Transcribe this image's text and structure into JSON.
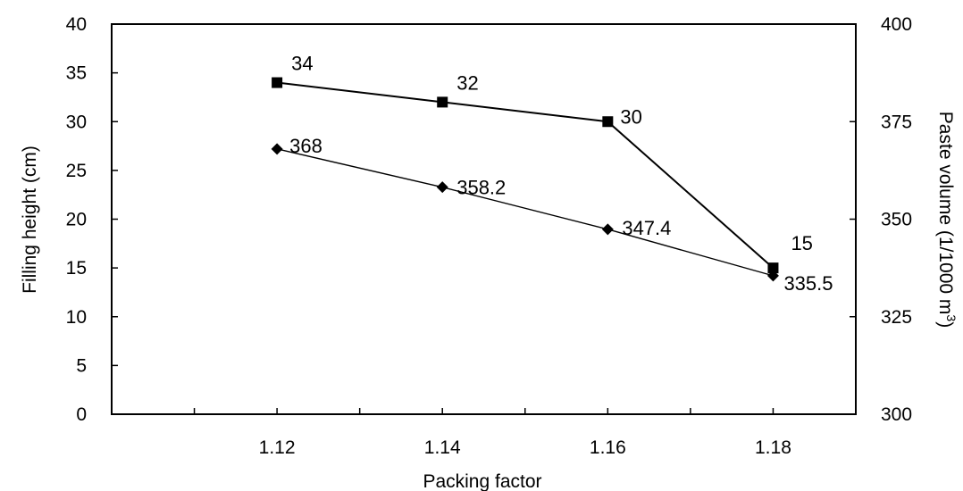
{
  "chart_data": {
    "type": "line",
    "xlabel": "Packing factor",
    "ylabel_left": "Filling height (cm)",
    "ylabel_right_main": "Paste volume (1/1000 m",
    "ylabel_right_sup": "3",
    "ylabel_right_close": ")",
    "x": [
      1.12,
      1.14,
      1.16,
      1.18
    ],
    "x_tick_labels": [
      "1.12",
      "1.14",
      "1.16",
      "1.18"
    ],
    "xlim": [
      1.1,
      1.19
    ],
    "y_left_lim": [
      0,
      40
    ],
    "y_left_ticks": [
      "0",
      "5",
      "10",
      "15",
      "20",
      "25",
      "30",
      "35",
      "40"
    ],
    "y_right_lim": [
      300,
      400
    ],
    "y_right_ticks": [
      "300",
      "325",
      "350",
      "375",
      "400"
    ],
    "series": [
      {
        "axis": "left",
        "marker": "square",
        "values": [
          34,
          32,
          30,
          15
        ],
        "labels": [
          "34",
          "32",
          "30",
          "15"
        ]
      },
      {
        "axis": "right",
        "marker": "diamond",
        "values": [
          368,
          358.2,
          347.4,
          335.5
        ],
        "labels": [
          "368",
          "358.2",
          "347.4",
          "335.5"
        ]
      }
    ],
    "grid": false,
    "line_color": "#000000"
  }
}
